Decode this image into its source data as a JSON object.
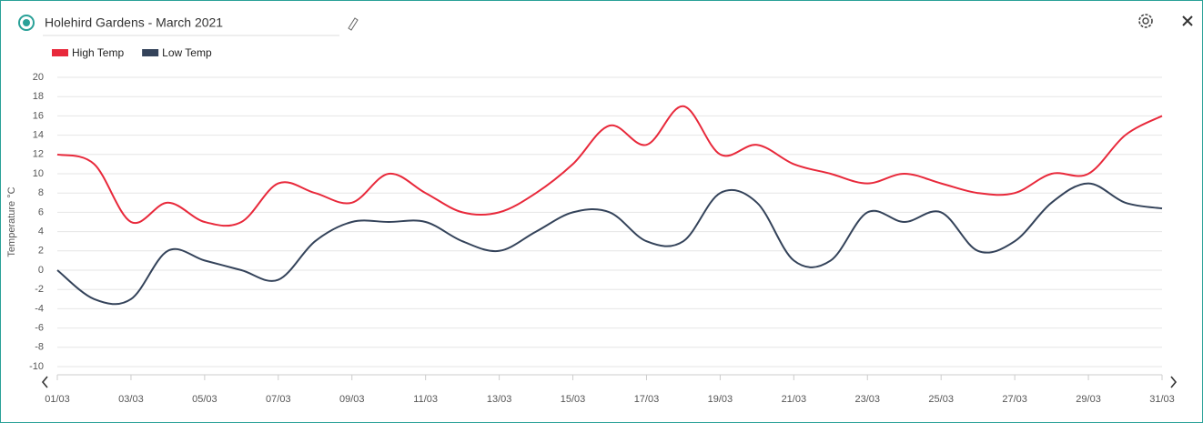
{
  "chart_data": {
    "type": "line",
    "title": "Holehird Gardens - March 2021",
    "y_label": "Temperature °C",
    "categories": [
      "01/03",
      null,
      "03/03",
      null,
      "05/03",
      null,
      "07/03",
      null,
      "09/03",
      null,
      "11/03",
      null,
      "13/03",
      null,
      "15/03",
      null,
      "17/03",
      null,
      "19/03",
      null,
      "21/03",
      null,
      "23/03",
      null,
      "25/03",
      null,
      "27/03",
      null,
      "29/03",
      null,
      "31/03"
    ],
    "series": [
      {
        "name": "High Temp",
        "color": "#e8293b",
        "values": [
          12,
          11,
          5,
          7,
          5,
          5,
          9,
          8,
          7,
          10,
          8,
          6,
          6,
          8,
          11,
          15,
          13,
          17,
          12,
          13,
          11,
          10,
          9,
          10,
          9,
          8,
          8,
          10,
          10,
          14,
          16
        ]
      },
      {
        "name": "Low Temp",
        "color": "#34435a",
        "values": [
          0,
          -3,
          -3,
          2,
          1,
          0,
          -1,
          3,
          5,
          5,
          5,
          3,
          2,
          4,
          6,
          6,
          3,
          3,
          8,
          7,
          1,
          1,
          6,
          5,
          6,
          2,
          3,
          7,
          9,
          7,
          6.4
        ]
      }
    ],
    "ylim": [
      -10,
      20
    ],
    "yticks": [
      -10,
      -8,
      -6,
      -4,
      -2,
      0,
      2,
      4,
      6,
      8,
      10,
      12,
      14,
      16,
      18,
      20
    ],
    "grid": true,
    "legend": "top-left"
  }
}
